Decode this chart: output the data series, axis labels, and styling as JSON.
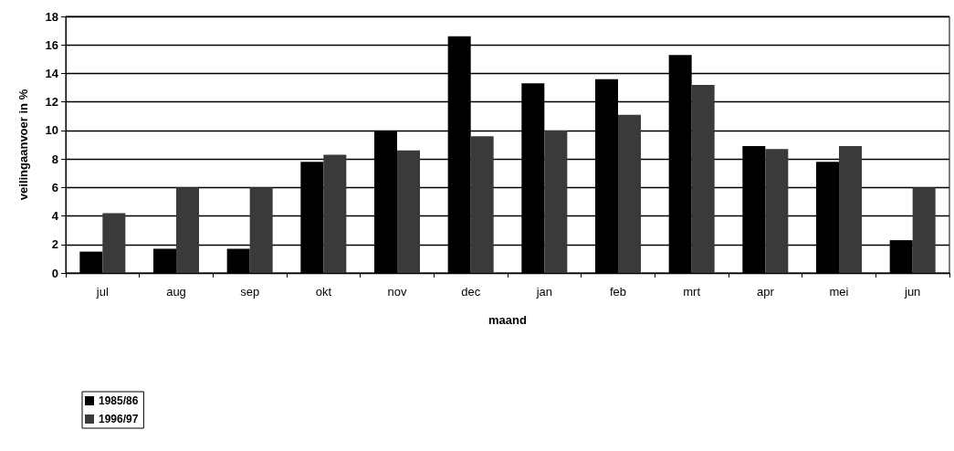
{
  "chart_data": {
    "type": "bar",
    "xlabel": "maand",
    "ylabel": "veilingaanvoer in %",
    "categories": [
      "jul",
      "aug",
      "sep",
      "okt",
      "nov",
      "dec",
      "jan",
      "feb",
      "mrt",
      "apr",
      "mei",
      "jun"
    ],
    "series": [
      {
        "name": "1985/86",
        "color": "#000000",
        "values": [
          1.5,
          1.7,
          1.7,
          7.8,
          10.0,
          16.6,
          13.3,
          13.6,
          15.3,
          8.9,
          7.8,
          2.3
        ]
      },
      {
        "name": "1996/97",
        "color": "#3a3a3a",
        "values": [
          4.2,
          6.0,
          6.0,
          8.3,
          8.6,
          9.6,
          10.0,
          11.1,
          13.2,
          8.7,
          8.9,
          6.0
        ]
      }
    ],
    "ylim": [
      0,
      18
    ],
    "yticks": [
      0,
      2,
      4,
      6,
      8,
      10,
      12,
      14,
      16,
      18
    ],
    "grid": "y",
    "legend": "bottom left"
  }
}
